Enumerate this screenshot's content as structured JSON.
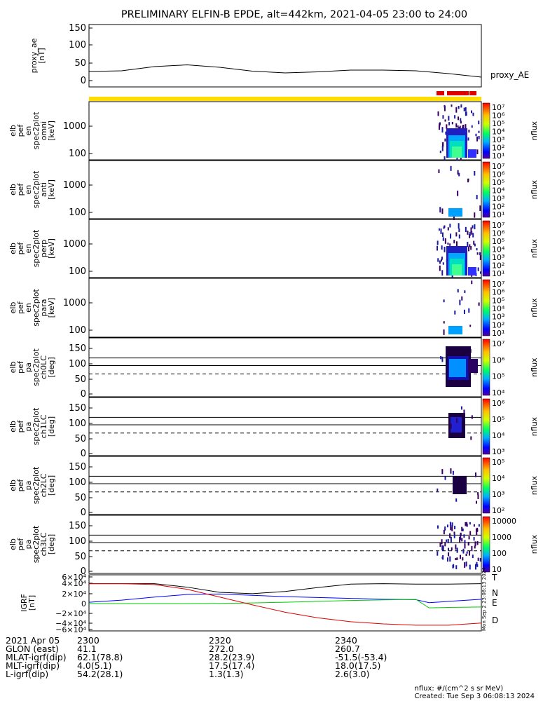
{
  "title": "PRELIMINARY ELFIN-B EPDE, alt=442km, 2021-04-05 23:00 to 24:00",
  "colors": {
    "line": "#000000",
    "yellow_bar": "#ffdd00",
    "red_bar": "#dd0000",
    "grf_T": "#000000",
    "grf_N": "#0000ff",
    "grf_E": "#00cc00",
    "grf_D": "#dd0000"
  },
  "panels": [
    {
      "id": "proxy_ae",
      "ylabel": [
        "proxy_ae",
        "[nT]"
      ],
      "ticks": [
        "150",
        "100",
        "50",
        "0"
      ],
      "legend": "proxy_AE"
    },
    {
      "id": "omni",
      "ylabel": [
        "elb",
        "pef",
        "en",
        "spec2plot",
        "omni",
        "[keV]"
      ],
      "ticks": [
        "1000",
        "100"
      ],
      "colorbar_title": "nflux",
      "cb_ticks": [
        "10⁷",
        "10⁶",
        "10⁵",
        "10⁴",
        "10³",
        "10²",
        "10¹"
      ]
    },
    {
      "id": "anti",
      "ylabel": [
        "elb",
        "pef",
        "en",
        "spec2plot",
        "anti",
        "[keV]"
      ],
      "ticks": [
        "1000",
        "100"
      ],
      "colorbar_title": "nflux",
      "cb_ticks": [
        "10⁷",
        "10⁶",
        "10⁵",
        "10⁴",
        "10³",
        "10²",
        "10¹"
      ]
    },
    {
      "id": "perp",
      "ylabel": [
        "elb",
        "pef",
        "en",
        "spec2plot",
        "perp",
        "[keV]"
      ],
      "ticks": [
        "1000",
        "100"
      ],
      "colorbar_title": "nflux",
      "cb_ticks": [
        "10⁷",
        "10⁶",
        "10⁵",
        "10⁴",
        "10³",
        "10²",
        "10¹"
      ]
    },
    {
      "id": "para",
      "ylabel": [
        "elb",
        "pef",
        "en",
        "spec2plot",
        "para",
        "[keV]"
      ],
      "ticks": [
        "1000",
        "100"
      ],
      "colorbar_title": "nflux",
      "cb_ticks": [
        "10⁷",
        "10⁶",
        "10⁵",
        "10⁴",
        "10³",
        "10²",
        "10¹"
      ]
    },
    {
      "id": "ch0LC",
      "ylabel": [
        "elb",
        "pef",
        "pa",
        "spec2plot",
        "ch0LC",
        "[deg]"
      ],
      "ticks": [
        "150",
        "100",
        "50",
        "0"
      ],
      "colorbar_title": "nflux",
      "cb_ticks": [
        "10⁷",
        "10⁶",
        "10⁵",
        "10⁴"
      ]
    },
    {
      "id": "ch1LC",
      "ylabel": [
        "elb",
        "pef",
        "pa",
        "spec2plot",
        "ch1LC",
        "[deg]"
      ],
      "ticks": [
        "150",
        "100",
        "50",
        "0"
      ],
      "colorbar_title": "nflux",
      "cb_ticks": [
        "10⁶",
        "10⁵",
        "10⁴",
        "10³"
      ]
    },
    {
      "id": "ch2LC",
      "ylabel": [
        "elb",
        "pef",
        "pa",
        "spec2plot",
        "ch2LC",
        "[deg]"
      ],
      "ticks": [
        "150",
        "100",
        "50",
        "0"
      ],
      "colorbar_title": "nflux",
      "cb_ticks": [
        "10⁵",
        "10⁴",
        "10³",
        "10²"
      ]
    },
    {
      "id": "ch3LC",
      "ylabel": [
        "elb",
        "pef",
        "pa",
        "spec2plot",
        "ch3LC",
        "[deg]"
      ],
      "ticks": [
        "150",
        "100",
        "50",
        "0"
      ],
      "colorbar_title": "nflux",
      "cb_ticks": [
        "10000",
        "1000",
        "100",
        "10"
      ]
    },
    {
      "id": "grf",
      "ylabel": [
        "IGRF",
        "[nT]"
      ],
      "ticks": [
        "6×10⁴",
        "4×10⁴",
        "2×10⁴",
        "0",
        "−2×10⁴",
        "−4×10⁴",
        "−6×10⁴"
      ],
      "legend": [
        "T",
        "N",
        "E",
        "D"
      ]
    }
  ],
  "side_stamp": "Mon Sep  2 23:08:13 2024",
  "footer": {
    "rows": [
      [
        "2021 Apr 05",
        "2300",
        "2320",
        "2340"
      ],
      [
        "GLON (east)",
        "41.1",
        "272.0",
        "260.7"
      ],
      [
        "MLAT-igrf(dip)",
        "62.1(78.8)",
        "28.2(23.9)",
        "-51.5(-53.4)"
      ],
      [
        "MLT-igrf(dip)",
        "4.0(5.1)",
        "17.5(17.4)",
        "18.0(17.5)"
      ],
      [
        "L-igrf(dip)",
        "54.2(28.1)",
        "1.3(1.3)",
        "2.6(3.0)"
      ]
    ]
  },
  "credit": [
    "nflux: #/(cm^2 s sr MeV)",
    "Created: Tue Sep  3 06:08:13 2024"
  ],
  "chart_data": {
    "type": "line",
    "x_range": [
      "2021-04-05 23:00",
      "2021-04-05 24:00"
    ],
    "proxy_ae": {
      "ylim": [
        0,
        150
      ],
      "x_min": [
        0,
        5,
        10,
        15,
        20,
        25,
        30,
        35,
        40,
        45,
        50,
        55,
        60
      ],
      "values": [
        26,
        28,
        40,
        45,
        38,
        27,
        22,
        25,
        30,
        30,
        28,
        20,
        10
      ]
    },
    "pitch_angle_ref_lines_deg": {
      "solid": [
        112,
        90
      ],
      "dashed": 66
    },
    "igrf": {
      "ylim": [
        -60000,
        60000
      ],
      "x_min": [
        0,
        5,
        10,
        15,
        20,
        25,
        30,
        35,
        40,
        45,
        50,
        52,
        55,
        60
      ],
      "series": [
        {
          "name": "T",
          "values": [
            46000,
            46000,
            46000,
            38000,
            26000,
            23000,
            28000,
            37000,
            45000,
            46000,
            45000,
            45000,
            45000,
            46000
          ]
        },
        {
          "name": "N",
          "values": [
            3000,
            8000,
            15000,
            21000,
            22000,
            19000,
            16000,
            14000,
            12000,
            10000,
            9000,
            2000,
            5000,
            10000
          ]
        },
        {
          "name": "E",
          "values": [
            0,
            0,
            0,
            0,
            500,
            1500,
            3000,
            5000,
            7000,
            8500,
            9500,
            -10000,
            -9000,
            -8000
          ]
        },
        {
          "name": "D",
          "values": [
            46000,
            46000,
            44000,
            33000,
            15000,
            -3000,
            -20000,
            -33000,
            -42000,
            -47000,
            -50000,
            -50000,
            -50000,
            -45000
          ]
        }
      ]
    }
  }
}
